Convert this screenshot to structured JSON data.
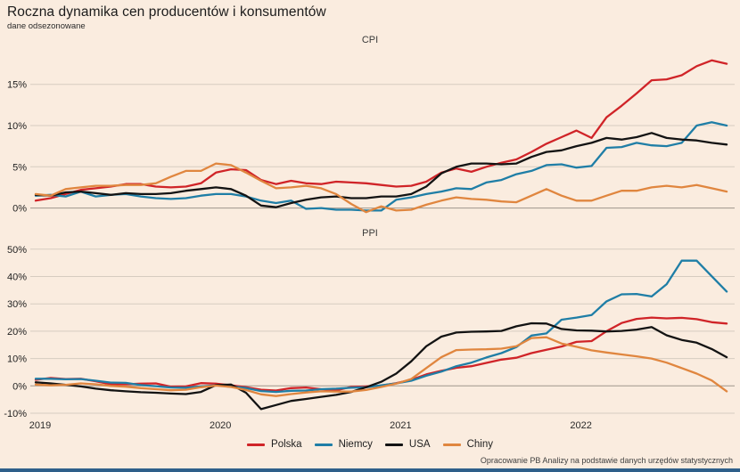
{
  "header": {
    "title": "Roczna dynamika cen producentów i konsumentów",
    "subtitle": "dane odsezonowane"
  },
  "footer": {
    "source": "Opracowanie PB Analizy na podstawie danych urzędów statystycznych"
  },
  "colors": {
    "background": "#faecdf",
    "grid": "#d6ccc0",
    "zero_axis": "#9e968c",
    "bottom_bar": "#2e5f8a",
    "polska": "#d02428",
    "niemcy": "#1f7ea6",
    "usa": "#131313",
    "chiny": "#e0863f"
  },
  "legend": [
    {
      "label": "Polska",
      "color": "#d02428"
    },
    {
      "label": "Niemcy",
      "color": "#1f7ea6"
    },
    {
      "label": "USA",
      "color": "#131313"
    },
    {
      "label": "Chiny",
      "color": "#e0863f"
    }
  ],
  "x_axis": {
    "years": [
      "2019",
      "2020",
      "2021",
      "2022"
    ]
  },
  "chart_data": [
    {
      "type": "line",
      "title": "CPI",
      "unit": "%",
      "x_start": "2019-01",
      "x_end": "2022-11",
      "x_freq": "monthly",
      "x_tick_labels": [
        "2019",
        "2020",
        "2021",
        "2022"
      ],
      "yticks": [
        15,
        10,
        5,
        0
      ],
      "ylim": [
        -1.5,
        19
      ],
      "grid": true,
      "legend_position": "bottom",
      "series": [
        {
          "name": "Polska",
          "color": "#d02428",
          "values": [
            0.9,
            1.2,
            1.7,
            2.2,
            2.4,
            2.6,
            2.9,
            2.9,
            2.6,
            2.5,
            2.6,
            3.0,
            4.3,
            4.7,
            4.6,
            3.4,
            2.9,
            3.3,
            3.0,
            2.9,
            3.2,
            3.1,
            3.0,
            2.8,
            2.6,
            2.7,
            3.2,
            4.3,
            4.8,
            4.4,
            5.0,
            5.5,
            5.9,
            6.8,
            7.8,
            8.6,
            9.4,
            8.5,
            11.0,
            12.4,
            13.9,
            15.5,
            15.6,
            16.1,
            17.2,
            17.9,
            17.5
          ]
        },
        {
          "name": "Niemcy",
          "color": "#1f7ea6",
          "values": [
            1.5,
            1.6,
            1.4,
            2.0,
            1.4,
            1.6,
            1.7,
            1.4,
            1.2,
            1.1,
            1.2,
            1.5,
            1.7,
            1.7,
            1.4,
            0.9,
            0.6,
            0.9,
            -0.1,
            0.0,
            -0.2,
            -0.2,
            -0.3,
            -0.3,
            1.0,
            1.3,
            1.7,
            2.0,
            2.4,
            2.3,
            3.1,
            3.4,
            4.1,
            4.5,
            5.2,
            5.3,
            4.9,
            5.1,
            7.3,
            7.4,
            7.9,
            7.6,
            7.5,
            7.9,
            10.0,
            10.4,
            10.0
          ]
        },
        {
          "name": "USA",
          "color": "#131313",
          "values": [
            1.6,
            1.5,
            1.9,
            2.0,
            1.8,
            1.6,
            1.8,
            1.7,
            1.7,
            1.8,
            2.1,
            2.3,
            2.5,
            2.3,
            1.5,
            0.3,
            0.1,
            0.6,
            1.0,
            1.3,
            1.4,
            1.2,
            1.2,
            1.4,
            1.4,
            1.7,
            2.6,
            4.2,
            5.0,
            5.4,
            5.4,
            5.3,
            5.4,
            6.2,
            6.8,
            7.0,
            7.5,
            7.9,
            8.5,
            8.3,
            8.6,
            9.1,
            8.5,
            8.3,
            8.2,
            7.9,
            7.7
          ]
        },
        {
          "name": "Chiny",
          "color": "#e0863f",
          "values": [
            1.7,
            1.5,
            2.3,
            2.5,
            2.7,
            2.7,
            2.8,
            2.8,
            3.0,
            3.8,
            4.5,
            4.5,
            5.4,
            5.2,
            4.3,
            3.3,
            2.4,
            2.5,
            2.7,
            2.4,
            1.7,
            0.5,
            -0.5,
            0.2,
            -0.3,
            -0.2,
            0.4,
            0.9,
            1.3,
            1.1,
            1.0,
            0.8,
            0.7,
            1.5,
            2.3,
            1.5,
            0.9,
            0.9,
            1.5,
            2.1,
            2.1,
            2.5,
            2.7,
            2.5,
            2.8,
            2.4,
            2.0
          ]
        }
      ]
    },
    {
      "type": "line",
      "title": "PPI",
      "unit": "%",
      "x_start": "2019-01",
      "x_end": "2022-11",
      "x_freq": "monthly",
      "x_tick_labels": [
        "2019",
        "2020",
        "2021",
        "2022"
      ],
      "yticks": [
        50,
        40,
        30,
        20,
        10,
        0,
        -10
      ],
      "ylim": [
        -13,
        52
      ],
      "grid": true,
      "legend_position": "bottom",
      "series": [
        {
          "name": "Polska",
          "color": "#d02428",
          "values": [
            2.2,
            2.9,
            2.5,
            2.6,
            1.7,
            0.6,
            0.6,
            0.8,
            0.9,
            -0.3,
            -0.2,
            1.0,
            0.8,
            0.2,
            -0.5,
            -1.4,
            -1.7,
            -0.8,
            -0.6,
            -1.2,
            -1.6,
            -0.4,
            -0.2,
            0.1,
            1.0,
            2.2,
            4.2,
            5.5,
            6.6,
            7.2,
            8.4,
            9.6,
            10.3,
            12.0,
            13.2,
            14.4,
            16.1,
            16.4,
            20.0,
            23.0,
            24.5,
            25.0,
            24.7,
            24.9,
            24.4,
            23.3,
            22.8
          ]
        },
        {
          "name": "Niemcy",
          "color": "#1f7ea6",
          "values": [
            2.6,
            2.6,
            2.4,
            2.5,
            1.9,
            1.2,
            1.1,
            0.3,
            -0.1,
            -0.6,
            -0.7,
            -0.2,
            0.2,
            -0.1,
            -0.8,
            -1.9,
            -2.2,
            -1.8,
            -1.7,
            -1.2,
            -1.0,
            -0.7,
            -0.5,
            0.2,
            0.9,
            1.9,
            3.7,
            5.2,
            7.2,
            8.5,
            10.4,
            12.0,
            14.2,
            18.4,
            19.2,
            24.2,
            25.0,
            25.9,
            30.9,
            33.5,
            33.6,
            32.7,
            37.2,
            45.8,
            45.8,
            40.1,
            34.5
          ]
        },
        {
          "name": "USA",
          "color": "#131313",
          "values": [
            1.3,
            0.9,
            0.4,
            -0.2,
            -1.0,
            -1.6,
            -2.0,
            -2.3,
            -2.5,
            -2.8,
            -3.0,
            -2.2,
            0.3,
            0.5,
            -2.5,
            -8.5,
            -7.0,
            -5.5,
            -4.8,
            -4.0,
            -3.3,
            -2.2,
            -0.5,
            1.5,
            4.5,
            9.0,
            14.5,
            18.0,
            19.5,
            19.8,
            19.9,
            20.1,
            21.8,
            22.9,
            22.8,
            20.8,
            20.3,
            20.2,
            19.9,
            20.1,
            20.6,
            21.5,
            18.5,
            16.8,
            15.8,
            13.5,
            10.5
          ]
        },
        {
          "name": "Chiny",
          "color": "#e0863f",
          "values": [
            0.5,
            0.2,
            0.4,
            0.9,
            0.6,
            0.0,
            -0.3,
            -0.8,
            -1.2,
            -1.6,
            -1.4,
            -0.5,
            0.1,
            -0.4,
            -1.5,
            -3.1,
            -3.7,
            -3.0,
            -2.4,
            -2.0,
            -2.1,
            -2.1,
            -1.5,
            -0.4,
            0.8,
            2.5,
            6.5,
            10.5,
            13.1,
            13.3,
            13.4,
            13.6,
            14.5,
            17.5,
            17.8,
            15.5,
            14.3,
            13.0,
            12.2,
            11.5,
            10.8,
            10.0,
            8.5,
            6.5,
            4.5,
            2.0,
            -2.0
          ]
        }
      ]
    }
  ]
}
